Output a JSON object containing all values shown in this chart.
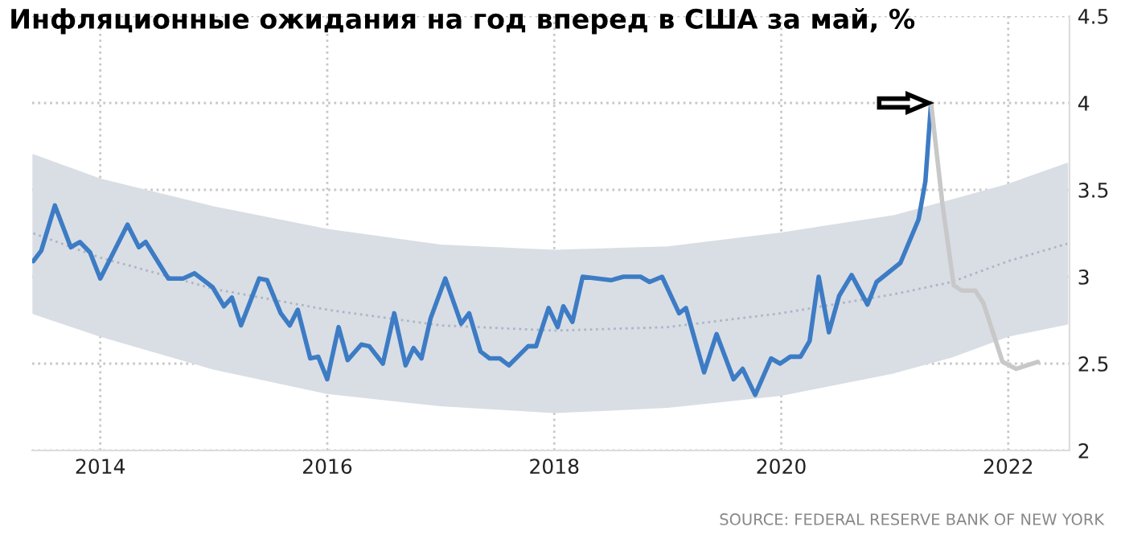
{
  "chart_data": {
    "type": "line",
    "title": "Инфляционные ожидания на год вперед в США за май, %",
    "series": [
      {
        "color": "#abb6c6",
        "line_style": "dotted",
        "x": [
          2013.41,
          2014.0,
          2015.0,
          2016.0,
          2017.0,
          2018.0,
          2019.0,
          2020.0,
          2021.0,
          2021.5,
          2022.0,
          2022.52
        ],
        "values": [
          3.25,
          3.11,
          2.93,
          2.81,
          2.72,
          2.69,
          2.71,
          2.79,
          2.9,
          2.97,
          3.09,
          3.19
        ],
        "lower": [
          2.79,
          2.66,
          2.47,
          2.33,
          2.26,
          2.22,
          2.25,
          2.32,
          2.45,
          2.54,
          2.66,
          2.73
        ],
        "upper": [
          3.7,
          3.56,
          3.4,
          3.27,
          3.18,
          3.15,
          3.17,
          3.25,
          3.35,
          3.44,
          3.53,
          3.65
        ]
      },
      {
        "color": "#3d7cc4",
        "line_style": "solid",
        "x": [
          2013.41,
          2013.48,
          2013.6,
          2013.74,
          2013.82,
          2013.91,
          2014.0,
          2014.24,
          2014.34,
          2014.4,
          2014.6,
          2014.73,
          2014.83,
          2014.99,
          2015.09,
          2015.16,
          2015.24,
          2015.4,
          2015.47,
          2015.59,
          2015.67,
          2015.74,
          2015.85,
          2015.92,
          2016.0,
          2016.1,
          2016.18,
          2016.3,
          2016.37,
          2016.49,
          2016.59,
          2016.69,
          2016.76,
          2016.83,
          2016.91,
          2017.04,
          2017.18,
          2017.25,
          2017.35,
          2017.43,
          2017.52,
          2017.6,
          2017.77,
          2017.84,
          2017.95,
          2018.03,
          2018.08,
          2018.16,
          2018.25,
          2018.5,
          2018.61,
          2018.76,
          2018.84,
          2018.95,
          2019.1,
          2019.16,
          2019.32,
          2019.43,
          2019.58,
          2019.66,
          2019.77,
          2019.91,
          2019.99,
          2020.08,
          2020.17,
          2020.25,
          2020.33,
          2020.42,
          2020.51,
          2020.62,
          2020.76,
          2020.84,
          2021.05,
          2021.21,
          2021.27,
          2021.32
        ],
        "values": [
          3.09,
          3.15,
          3.41,
          3.17,
          3.2,
          3.14,
          2.99,
          3.3,
          3.17,
          3.2,
          2.99,
          2.99,
          3.02,
          2.94,
          2.83,
          2.88,
          2.72,
          2.99,
          2.98,
          2.79,
          2.72,
          2.81,
          2.53,
          2.54,
          2.41,
          2.71,
          2.52,
          2.61,
          2.6,
          2.5,
          2.79,
          2.49,
          2.59,
          2.53,
          2.76,
          2.99,
          2.73,
          2.79,
          2.57,
          2.53,
          2.53,
          2.49,
          2.6,
          2.6,
          2.82,
          2.71,
          2.83,
          2.74,
          3.0,
          2.98,
          3.0,
          3.0,
          2.97,
          3.0,
          2.79,
          2.82,
          2.45,
          2.67,
          2.41,
          2.47,
          2.32,
          2.53,
          2.5,
          2.54,
          2.54,
          2.63,
          3.0,
          2.68,
          2.89,
          3.01,
          2.84,
          2.97,
          3.08,
          3.33,
          3.55,
          4.0
        ]
      },
      {
        "color": "#c8c8c8",
        "line_style": "solid",
        "x": [
          2021.32,
          2021.42,
          2021.52,
          2021.59,
          2021.71,
          2021.78,
          2021.95,
          2022.07,
          2022.26
        ],
        "values": [
          4.0,
          3.42,
          2.95,
          2.92,
          2.92,
          2.85,
          2.51,
          2.47,
          2.51
        ]
      }
    ],
    "xlim": [
      2013.4,
      2022.54
    ],
    "xticks": [
      2014,
      2016,
      2018,
      2020,
      2022
    ],
    "ylim": [
      2,
      4.5
    ],
    "yticks": [
      2,
      2.5,
      3,
      3.5,
      4,
      4.5
    ],
    "grid": true,
    "annotations": [
      "SOURCE: FEDERAL RESERVE BANK OF NEW YORK"
    ]
  }
}
